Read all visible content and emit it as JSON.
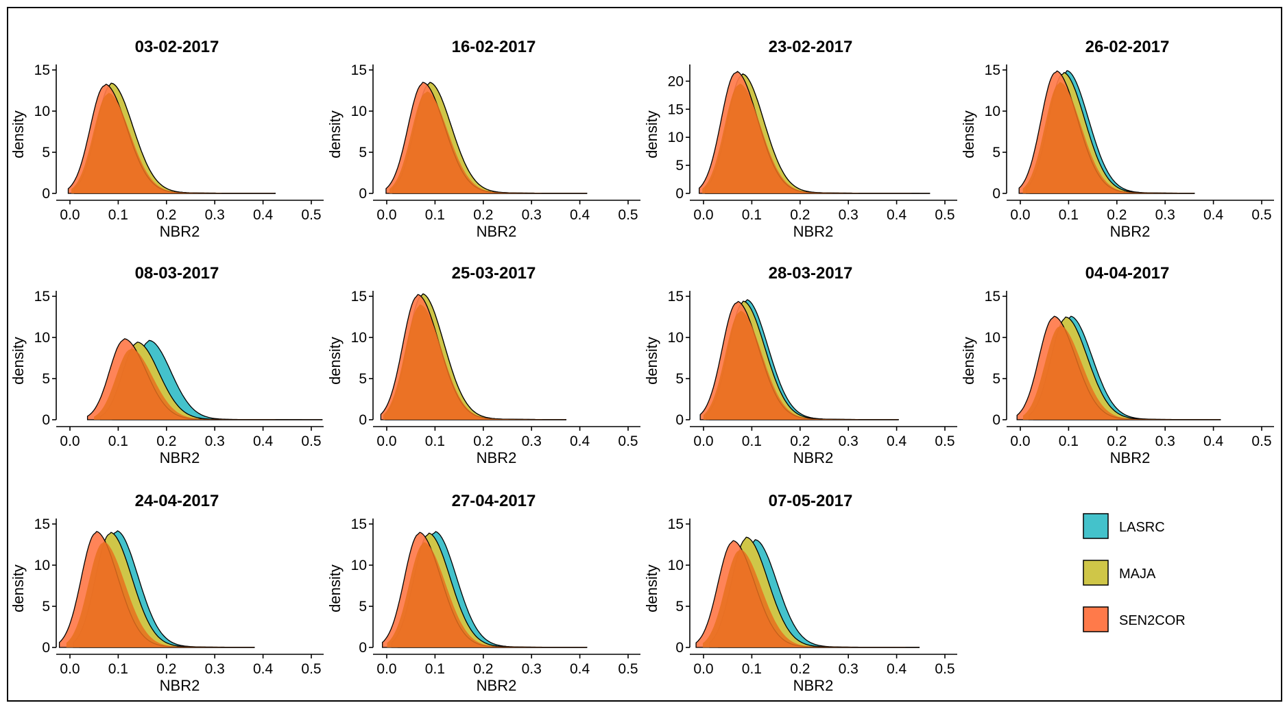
{
  "figure": {
    "legend": {
      "items": [
        {
          "name": "LASRC",
          "color": "#44c2cb"
        },
        {
          "name": "MAJA",
          "color": "#cfc648"
        },
        {
          "name": "SEN2COR",
          "color": "#ff7a4a"
        }
      ],
      "overlap_color": "#e8701e"
    }
  },
  "chart_data": [
    {
      "type": "area",
      "title": "03-02-2017",
      "xlabel": "NBR2",
      "ylabel": "density",
      "xlim": [
        0,
        0.5
      ],
      "ylim": [
        0,
        15
      ],
      "x_ticks": [
        "0.0",
        "0.1",
        "0.2",
        "0.3",
        "0.4",
        "0.5"
      ],
      "y_ticks": [
        "0",
        "5",
        "10",
        "15"
      ],
      "series": [
        {
          "name": "LASRC",
          "peak_x": 0.105,
          "peak_y": 13.2,
          "tail_end": 0.42
        },
        {
          "name": "MAJA",
          "peak_x": 0.105,
          "peak_y": 13.2,
          "tail_end": 0.42
        },
        {
          "name": "SEN2COR",
          "peak_x": 0.093,
          "peak_y": 13.1,
          "tail_end": 0.42
        }
      ]
    },
    {
      "type": "area",
      "title": "16-02-2017",
      "xlabel": "NBR2",
      "ylabel": "density",
      "xlim": [
        0,
        0.5
      ],
      "ylim": [
        0,
        15
      ],
      "x_ticks": [
        "0.0",
        "0.1",
        "0.2",
        "0.3",
        "0.4",
        "0.5"
      ],
      "y_ticks": [
        "0",
        "5",
        "10",
        "15"
      ],
      "series": [
        {
          "name": "LASRC",
          "peak_x": 0.108,
          "peak_y": 13.3,
          "tail_end": 0.41
        },
        {
          "name": "MAJA",
          "peak_x": 0.108,
          "peak_y": 13.3,
          "tail_end": 0.41
        },
        {
          "name": "SEN2COR",
          "peak_x": 0.095,
          "peak_y": 13.3,
          "tail_end": 0.41
        }
      ]
    },
    {
      "type": "area",
      "title": "23-02-2017",
      "xlabel": "NBR2",
      "ylabel": "density",
      "xlim": [
        0,
        0.5
      ],
      "ylim": [
        0,
        22
      ],
      "x_ticks": [
        "0.0",
        "0.1",
        "0.2",
        "0.3",
        "0.4",
        "0.5"
      ],
      "y_ticks": [
        "0",
        "5",
        "10",
        "15",
        "20"
      ],
      "series": [
        {
          "name": "LASRC",
          "peak_x": 0.1,
          "peak_y": 21.0,
          "tail_end": 0.46
        },
        {
          "name": "MAJA",
          "peak_x": 0.1,
          "peak_y": 21.0,
          "tail_end": 0.46
        },
        {
          "name": "SEN2COR",
          "peak_x": 0.088,
          "peak_y": 21.5,
          "tail_end": 0.46
        }
      ]
    },
    {
      "type": "area",
      "title": "26-02-2017",
      "xlabel": "NBR2",
      "ylabel": "density",
      "xlim": [
        0,
        0.5
      ],
      "ylim": [
        0,
        15
      ],
      "x_ticks": [
        "0.0",
        "0.1",
        "0.2",
        "0.3",
        "0.4",
        "0.5"
      ],
      "y_ticks": [
        "0",
        "5",
        "10",
        "15"
      ],
      "series": [
        {
          "name": "LASRC",
          "peak_x": 0.115,
          "peak_y": 14.7,
          "tail_end": 0.36
        },
        {
          "name": "MAJA",
          "peak_x": 0.108,
          "peak_y": 14.5,
          "tail_end": 0.36
        },
        {
          "name": "SEN2COR",
          "peak_x": 0.094,
          "peak_y": 14.7,
          "tail_end": 0.36
        }
      ]
    },
    {
      "type": "area",
      "title": "08-03-2017",
      "xlabel": "NBR2",
      "ylabel": "density",
      "xlim": [
        0,
        0.5
      ],
      "ylim": [
        0,
        15
      ],
      "x_ticks": [
        "0.0",
        "0.1",
        "0.2",
        "0.3",
        "0.4",
        "0.5"
      ],
      "y_ticks": [
        "0",
        "5",
        "10",
        "15"
      ],
      "series": [
        {
          "name": "LASRC",
          "peak_x": 0.178,
          "peak_y": 9.5,
          "tail_end": 0.51
        },
        {
          "name": "MAJA",
          "peak_x": 0.155,
          "peak_y": 9.3,
          "tail_end": 0.51
        },
        {
          "name": "SEN2COR",
          "peak_x": 0.13,
          "peak_y": 9.7,
          "tail_end": 0.51
        }
      ]
    },
    {
      "type": "area",
      "title": "25-03-2017",
      "xlabel": "NBR2",
      "ylabel": "density",
      "xlim": [
        0,
        0.5
      ],
      "ylim": [
        0,
        15
      ],
      "x_ticks": [
        "0.0",
        "0.1",
        "0.2",
        "0.3",
        "0.4",
        "0.5"
      ],
      "y_ticks": [
        "0",
        "5",
        "10",
        "15"
      ],
      "series": [
        {
          "name": "LASRC",
          "peak_x": 0.094,
          "peak_y": 15.1,
          "tail_end": 0.37
        },
        {
          "name": "MAJA",
          "peak_x": 0.094,
          "peak_y": 15.1,
          "tail_end": 0.37
        },
        {
          "name": "SEN2COR",
          "peak_x": 0.085,
          "peak_y": 15.0,
          "tail_end": 0.37
        }
      ]
    },
    {
      "type": "area",
      "title": "28-03-2017",
      "xlabel": "NBR2",
      "ylabel": "density",
      "xlim": [
        0,
        0.5
      ],
      "ylim": [
        0,
        15
      ],
      "x_ticks": [
        "0.0",
        "0.1",
        "0.2",
        "0.3",
        "0.4",
        "0.5"
      ],
      "y_ticks": [
        "0",
        "5",
        "10",
        "15"
      ],
      "series": [
        {
          "name": "LASRC",
          "peak_x": 0.108,
          "peak_y": 14.4,
          "tail_end": 0.4
        },
        {
          "name": "MAJA",
          "peak_x": 0.102,
          "peak_y": 14.2,
          "tail_end": 0.4
        },
        {
          "name": "SEN2COR",
          "peak_x": 0.09,
          "peak_y": 14.2,
          "tail_end": 0.4
        }
      ]
    },
    {
      "type": "area",
      "title": "04-04-2017",
      "xlabel": "NBR2",
      "ylabel": "density",
      "xlim": [
        0,
        0.5
      ],
      "ylim": [
        0,
        15
      ],
      "x_ticks": [
        "0.0",
        "0.1",
        "0.2",
        "0.3",
        "0.4",
        "0.5"
      ],
      "y_ticks": [
        "0",
        "5",
        "10",
        "15"
      ],
      "series": [
        {
          "name": "LASRC",
          "peak_x": 0.122,
          "peak_y": 12.4,
          "tail_end": 0.41
        },
        {
          "name": "MAJA",
          "peak_x": 0.113,
          "peak_y": 12.3,
          "tail_end": 0.41
        },
        {
          "name": "SEN2COR",
          "peak_x": 0.09,
          "peak_y": 12.4,
          "tail_end": 0.41
        }
      ]
    },
    {
      "type": "area",
      "title": "24-04-2017",
      "xlabel": "NBR2",
      "ylabel": "density",
      "xlim": [
        0,
        0.5
      ],
      "ylim": [
        0,
        15
      ],
      "x_ticks": [
        "0.0",
        "0.1",
        "0.2",
        "0.3",
        "0.4",
        "0.5"
      ],
      "y_ticks": [
        "0",
        "5",
        "10",
        "15"
      ],
      "series": [
        {
          "name": "LASRC",
          "peak_x": 0.115,
          "peak_y": 14.0,
          "tail_end": 0.38
        },
        {
          "name": "MAJA",
          "peak_x": 0.103,
          "peak_y": 13.8,
          "tail_end": 0.38
        },
        {
          "name": "SEN2COR",
          "peak_x": 0.076,
          "peak_y": 13.9,
          "tail_end": 0.38
        }
      ]
    },
    {
      "type": "area",
      "title": "27-04-2017",
      "xlabel": "NBR2",
      "ylabel": "density",
      "xlim": [
        0,
        0.5
      ],
      "ylim": [
        0,
        15
      ],
      "x_ticks": [
        "0.0",
        "0.1",
        "0.2",
        "0.3",
        "0.4",
        "0.5"
      ],
      "y_ticks": [
        "0",
        "5",
        "10",
        "15"
      ],
      "series": [
        {
          "name": "LASRC",
          "peak_x": 0.118,
          "peak_y": 13.9,
          "tail_end": 0.41
        },
        {
          "name": "MAJA",
          "peak_x": 0.106,
          "peak_y": 13.7,
          "tail_end": 0.41
        },
        {
          "name": "SEN2COR",
          "peak_x": 0.088,
          "peak_y": 13.8,
          "tail_end": 0.41
        }
      ]
    },
    {
      "type": "area",
      "title": "07-05-2017",
      "xlabel": "NBR2",
      "ylabel": "density",
      "xlim": [
        0,
        0.5
      ],
      "ylim": [
        0,
        15
      ],
      "x_ticks": [
        "0.0",
        "0.1",
        "0.2",
        "0.3",
        "0.4",
        "0.5"
      ],
      "y_ticks": [
        "0",
        "5",
        "10",
        "15"
      ],
      "series": [
        {
          "name": "LASRC",
          "peak_x": 0.125,
          "peak_y": 12.9,
          "tail_end": 0.44
        },
        {
          "name": "MAJA",
          "peak_x": 0.108,
          "peak_y": 13.2,
          "tail_end": 0.44
        },
        {
          "name": "SEN2COR",
          "peak_x": 0.082,
          "peak_y": 12.8,
          "tail_end": 0.44
        }
      ]
    }
  ]
}
